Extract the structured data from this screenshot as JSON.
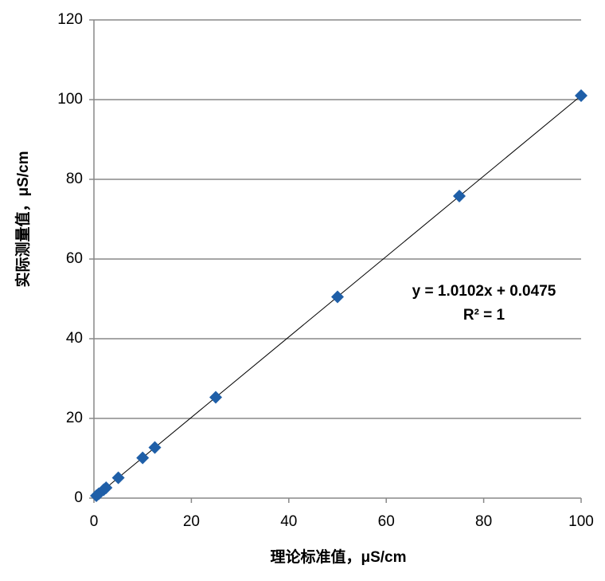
{
  "chart_data": {
    "type": "scatter",
    "xlabel": "理论标准值，μS/cm",
    "ylabel": "实际测量值，μS/cm",
    "annotations": [
      "y = 1.0102x + 0.0475",
      "R² = 1"
    ],
    "series": [
      {
        "color": "#1f5fa8",
        "x": [
          0.5,
          1,
          2,
          2.5,
          5,
          10,
          12.5,
          25,
          50,
          75,
          100
        ],
        "values": [
          0.6,
          1.1,
          2.1,
          2.6,
          5.1,
          10.1,
          12.7,
          25.3,
          50.5,
          75.8,
          101
        ]
      }
    ],
    "xlim": [
      0,
      100
    ],
    "xticks": [
      0,
      20,
      40,
      60,
      80,
      100
    ],
    "ylim": [
      0,
      120
    ],
    "yticks": [
      0,
      20,
      40,
      60,
      80,
      100,
      120
    ],
    "grid": true,
    "trendline": true
  }
}
